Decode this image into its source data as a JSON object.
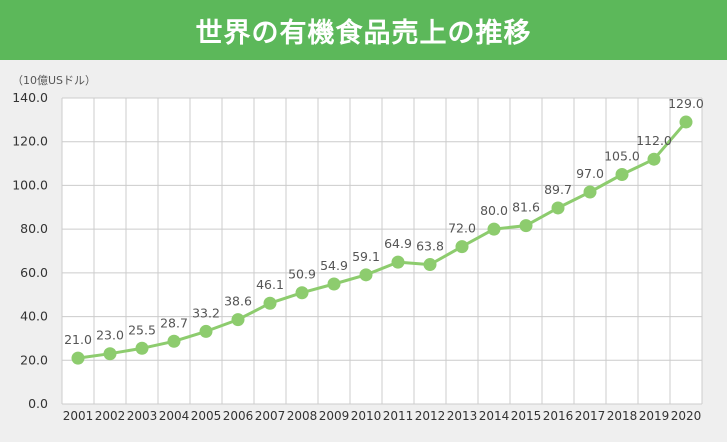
{
  "header": {
    "title": "世界の有機食品売上の推移"
  },
  "chart_data": {
    "type": "line",
    "title": "世界の有機食品売上の推移",
    "unit_label": "（10億USドル）",
    "xlabel": "",
    "ylabel": "",
    "categories": [
      "2001",
      "2002",
      "2003",
      "2004",
      "2005",
      "2006",
      "2007",
      "2008",
      "2009",
      "2010",
      "2011",
      "2012",
      "2013",
      "2014",
      "2015",
      "2016",
      "2017",
      "2018",
      "2019",
      "2020"
    ],
    "series": [
      {
        "values": [
          21.0,
          23.0,
          25.5,
          28.7,
          33.2,
          38.6,
          46.1,
          50.9,
          54.9,
          59.1,
          64.9,
          63.8,
          72.0,
          80.0,
          81.6,
          89.7,
          97.0,
          105.0,
          112.0,
          129.0
        ]
      }
    ],
    "ylim": [
      0,
      140
    ],
    "yticks": [
      "0.0",
      "20.0",
      "40.0",
      "60.0",
      "80.0",
      "100.0",
      "120.0",
      "140.0"
    ],
    "data_labels": [
      "21.0",
      "23.0",
      "25.5",
      "28.7",
      "33.2",
      "38.6",
      "46.1",
      "50.9",
      "54.9",
      "59.1",
      "64.9",
      "63.8",
      "72.0",
      "80.0",
      "81.6",
      "89.7",
      "97.0",
      "105.0",
      "112.0",
      "129.0"
    ],
    "grid": true,
    "legend": "none",
    "colors": {
      "line": "#8dcc6e",
      "marker": "#8dcc6e",
      "grid": "#cccccc",
      "header": "#5cb85a"
    }
  }
}
